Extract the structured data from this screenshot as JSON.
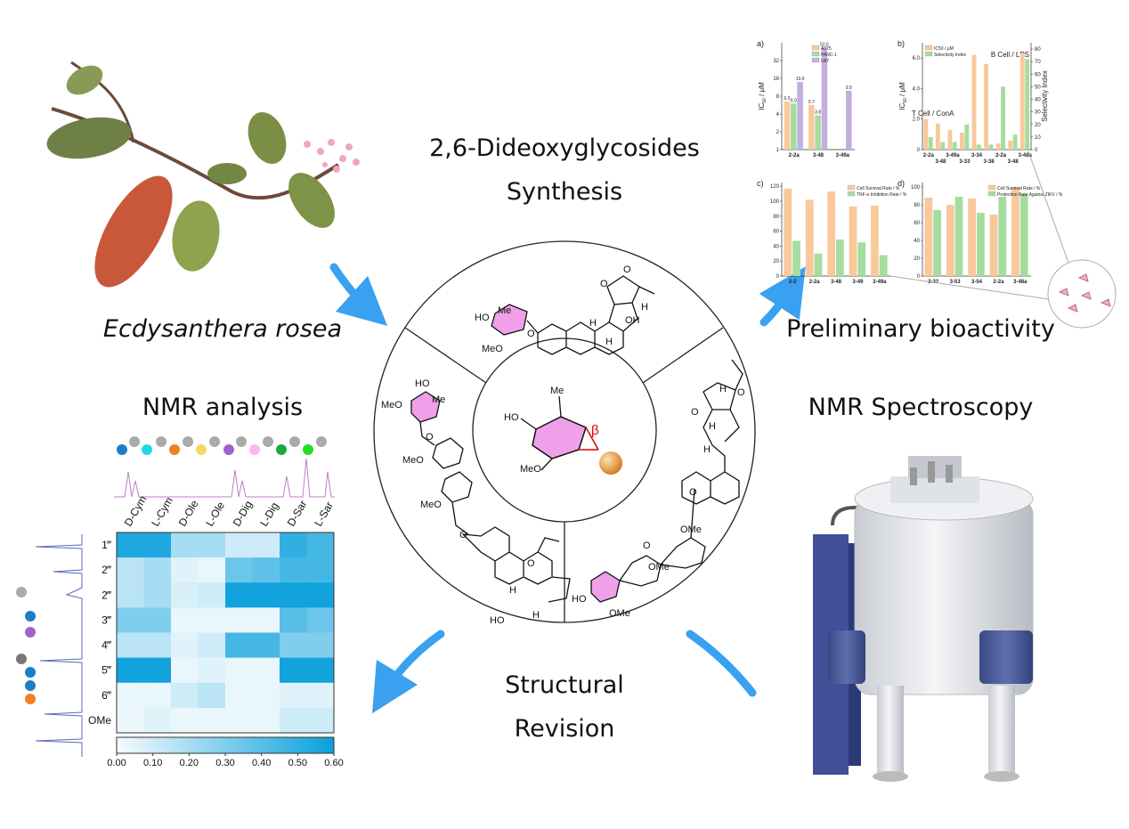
{
  "labels": {
    "plant": "Ecdysanthera rosea",
    "synthesis": [
      "2,6-Dideoxyglycosides",
      "Synthesis"
    ],
    "bioactivity": "Preliminary bioactivity",
    "nmr_analysis": "NMR analysis",
    "nmr_spectroscopy": "NMR Spectroscopy",
    "revision": [
      "Structural",
      "Revision"
    ]
  },
  "structures": {
    "center": [
      "HO",
      "Me",
      "MeO",
      "β"
    ],
    "top": [
      "O",
      "HO",
      "Me",
      "MeO",
      "O",
      "H",
      "H",
      "OH",
      "O",
      "H"
    ],
    "left": [
      "HO",
      "Me",
      "MeO",
      "O",
      "MeO",
      "MeO",
      "O",
      "H",
      "O",
      "HO",
      "H"
    ],
    "right": [
      "O",
      "H",
      "O",
      "H",
      "H",
      "O",
      "OMe",
      "O",
      "OMe",
      "HO",
      "OMe"
    ]
  },
  "charts": {
    "a": {
      "type": "bar",
      "panel": "a)",
      "log_scale": true,
      "y_label": {
        "text": "IC",
        "sub": "50",
        "unit": " / μM"
      },
      "categories": [
        "2-2a",
        "3-48",
        "3-49a"
      ],
      "ylim": [
        1,
        64
      ],
      "yticks": [
        1,
        2,
        4,
        8,
        16,
        32
      ],
      "legend": "top-right",
      "series": [
        {
          "name": "A375",
          "color": "#f9c89b",
          "values": [
            6.5,
            5.7,
            null
          ],
          "value_labels": [
            "6.5",
            "5.7",
            null
          ]
        },
        {
          "name": "PANC-1",
          "color": "#a5dd9f",
          "values": [
            6.0,
            3.8,
            null
          ],
          "value_labels": [
            "6.0",
            "3.8",
            null
          ]
        },
        {
          "name": "U87",
          "color": "#c3aee0",
          "values": [
            13.9,
            52.6,
            9.9
          ],
          "value_labels": [
            "13.9",
            "52.6",
            "9.9"
          ]
        }
      ]
    },
    "b": {
      "type": "bar",
      "panel": "b)",
      "y_label": {
        "text": "IC",
        "sub": "50",
        "unit": " / μM"
      },
      "y2_label": "Selectivity Index",
      "annotations": [
        "B Cell / LPS",
        "T Cell / ConA"
      ],
      "categories": [
        "2-2a",
        "3-48",
        "3-49a",
        "3-33",
        "3-34",
        "3-38",
        "2-2a",
        "3-48",
        "3-48a"
      ],
      "ylim": [
        0,
        7
      ],
      "yticks": [
        0,
        {
          "value": 2,
          "label": "2.0"
        },
        {
          "value": 4,
          "label": "4.0"
        },
        {
          "value": 6,
          "label": "6.0"
        }
      ],
      "y2lim": [
        0,
        85
      ],
      "y2ticks": [
        0,
        10,
        20,
        30,
        40,
        50,
        60,
        70,
        80
      ],
      "legend": "top-left",
      "series": [
        {
          "name": "IC50 / μM",
          "color": "#f9c89b",
          "values": [
            2.0,
            1.7,
            1.3,
            1.1,
            6.2,
            5.6,
            0.4,
            0.6,
            6.3
          ]
        },
        {
          "name": "Selectivity Index",
          "color": "#a5dd9f",
          "axis": "y2",
          "values": [
            10,
            6,
            6,
            20,
            4,
            4,
            50,
            12,
            72
          ]
        }
      ]
    },
    "c": {
      "type": "bar",
      "panel": "c)",
      "categories": [
        "2-2",
        "2-2a",
        "3-48",
        "3-49",
        "3-49a"
      ],
      "ylim": [
        0,
        125
      ],
      "yticks": [
        0,
        20,
        40,
        60,
        80,
        100,
        120
      ],
      "legend": "top-right",
      "series": [
        {
          "name": "Cell Survival Rate / %",
          "color": "#f9c89b",
          "values": [
            117,
            102,
            113,
            93,
            94
          ]
        },
        {
          "name": "TNF-α Inhibition Rate / %",
          "color": "#a5dd9f",
          "values": [
            47,
            30,
            49,
            45,
            28
          ]
        }
      ]
    },
    "d": {
      "type": "bar",
      "panel": "d)",
      "categories": [
        "3-32",
        "3-53",
        "3-54",
        "2-2a",
        "3-48a"
      ],
      "ylim": [
        0,
        105
      ],
      "yticks": [
        0,
        20,
        40,
        60,
        80,
        100
      ],
      "legend": "top-right",
      "series": [
        {
          "name": "Cell Survival Rate / %",
          "color": "#f9c89b",
          "values": [
            88,
            80,
            87,
            69,
            100
          ]
        },
        {
          "name": "Protection Rate Against ZIKV / %",
          "color": "#a5dd9f",
          "values": [
            74,
            89,
            71,
            89,
            92
          ]
        }
      ]
    }
  },
  "heatmap": {
    "columns": [
      "D-Cym",
      "L-Cym",
      "D-Ole",
      "L-Ole",
      "D-Dig",
      "L-Dig",
      "D-Sar",
      "L-Sar"
    ],
    "rows": [
      "1‴",
      "2‴",
      "2‴",
      "3‴",
      "4‴",
      "5‴",
      "6‴",
      "OMe"
    ],
    "values": [
      [
        0.55,
        0.55,
        0.2,
        0.2,
        0.1,
        0.1,
        0.5,
        0.45
      ],
      [
        0.15,
        0.2,
        0.05,
        0.03,
        0.35,
        0.38,
        0.45,
        0.45
      ],
      [
        0.15,
        0.2,
        0.08,
        0.1,
        0.58,
        0.58,
        0.58,
        0.58
      ],
      [
        0.3,
        0.3,
        0.03,
        0.03,
        0.03,
        0.03,
        0.4,
        0.35
      ],
      [
        0.15,
        0.15,
        0.05,
        0.1,
        0.45,
        0.45,
        0.3,
        0.3
      ],
      [
        0.58,
        0.58,
        0.03,
        0.05,
        0.03,
        0.03,
        0.58,
        0.58
      ],
      [
        0.03,
        0.03,
        0.1,
        0.15,
        0.03,
        0.03,
        0.05,
        0.05
      ],
      [
        0.02,
        0.05,
        0.03,
        0.03,
        0.03,
        0.03,
        0.1,
        0.1
      ]
    ],
    "vlim": [
      0,
      0.6
    ],
    "colors": [
      "#f5fbfd",
      "#0aa0dc"
    ],
    "colorbar_ticks": [
      {
        "value": 0,
        "label": "0.00"
      },
      {
        "value": 0.1,
        "label": "0.10"
      },
      {
        "value": 0.2,
        "label": "0.20"
      },
      {
        "value": 0.3,
        "label": "0.30"
      },
      {
        "value": 0.4,
        "label": "0.40"
      },
      {
        "value": 0.5,
        "label": "0.50"
      },
      {
        "value": 0.6,
        "label": "0.60"
      }
    ]
  }
}
